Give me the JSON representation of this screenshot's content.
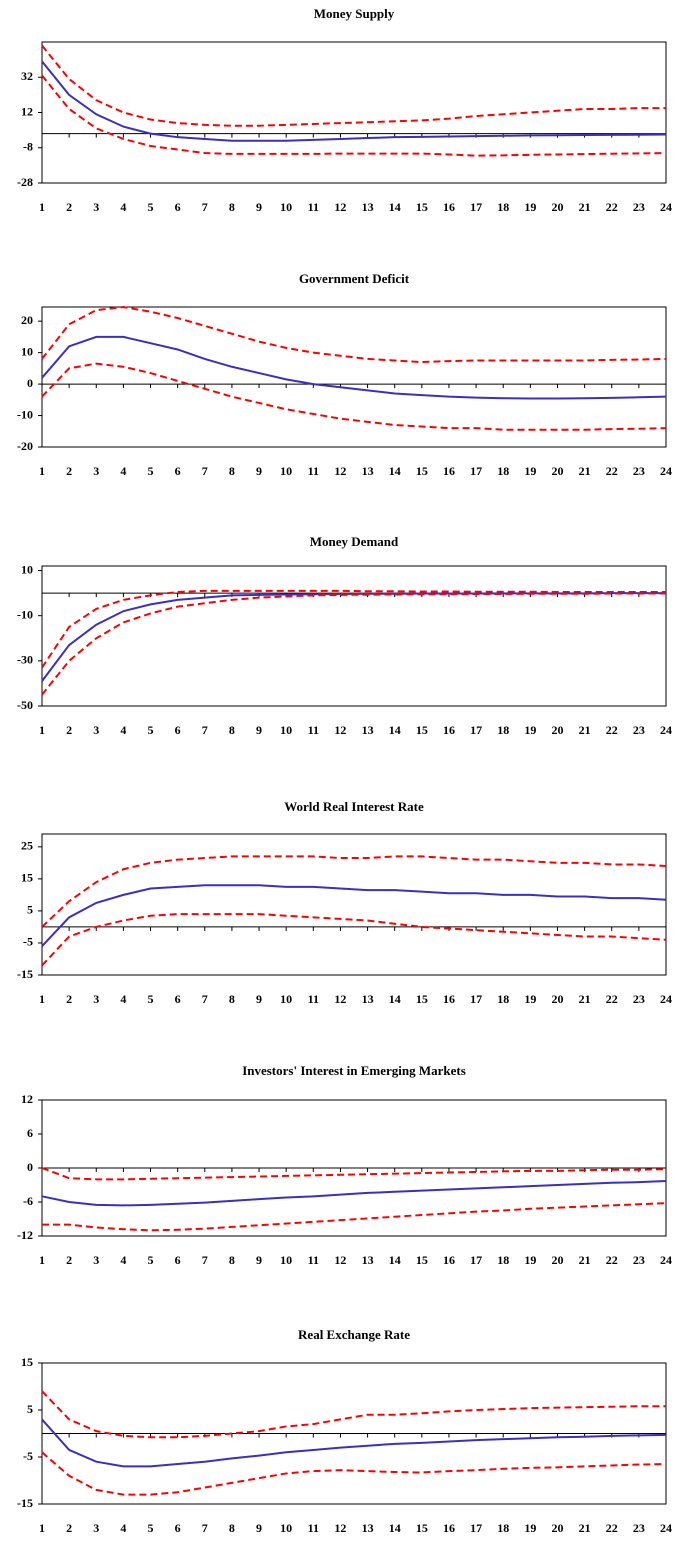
{
  "chart_data": [
    {
      "type": "line",
      "title": "Money Supply",
      "x": [
        1,
        2,
        3,
        4,
        5,
        6,
        7,
        8,
        9,
        10,
        11,
        12,
        13,
        14,
        15,
        16,
        17,
        18,
        19,
        20,
        21,
        22,
        23,
        24
      ],
      "xlim": [
        1,
        24
      ],
      "xticks": [
        1,
        2,
        3,
        4,
        5,
        6,
        7,
        8,
        9,
        10,
        11,
        12,
        13,
        14,
        15,
        16,
        17,
        18,
        19,
        20,
        21,
        22,
        23,
        24
      ],
      "ylim": [
        -28,
        52
      ],
      "yticks": [
        -28,
        -8,
        12,
        32
      ],
      "series": [
        {
          "color": "#ff0000",
          "line_style": "dashed",
          "values": [
            50,
            31,
            19,
            12,
            8,
            6,
            5,
            4.5,
            4.5,
            5,
            5.5,
            6,
            6.5,
            7,
            7.5,
            8.5,
            10,
            11,
            12,
            13,
            14,
            14,
            14.5,
            14.5
          ]
        },
        {
          "color": "#3a2fc4",
          "line_style": "solid",
          "values": [
            41,
            22,
            11,
            4,
            0,
            -2,
            -3,
            -4,
            -4,
            -4,
            -3.5,
            -3,
            -2.5,
            -2,
            -1.8,
            -1.6,
            -1.4,
            -1.2,
            -1,
            -0.9,
            -0.8,
            -0.7,
            -0.6,
            -0.5
          ]
        },
        {
          "color": "#ff0000",
          "line_style": "dashed",
          "values": [
            33,
            14,
            3,
            -3,
            -7,
            -9,
            -11,
            -11.5,
            -11.5,
            -11.5,
            -11.5,
            -11.3,
            -11.3,
            -11.3,
            -11.3,
            -11.8,
            -12.5,
            -12.3,
            -12,
            -11.8,
            -11.6,
            -11.4,
            -11.2,
            -11
          ]
        }
      ]
    },
    {
      "type": "line",
      "title": "Government Deficit",
      "x": [
        1,
        2,
        3,
        4,
        5,
        6,
        7,
        8,
        9,
        10,
        11,
        12,
        13,
        14,
        15,
        16,
        17,
        18,
        19,
        20,
        21,
        22,
        23,
        24
      ],
      "xlim": [
        1,
        24
      ],
      "xticks": [
        1,
        2,
        3,
        4,
        5,
        6,
        7,
        8,
        9,
        10,
        11,
        12,
        13,
        14,
        15,
        16,
        17,
        18,
        19,
        20,
        21,
        22,
        23,
        24
      ],
      "ylim": [
        -20,
        24.5
      ],
      "yticks": [
        -20,
        -10,
        0,
        10,
        20
      ],
      "series": [
        {
          "color": "#ff0000",
          "line_style": "dashed",
          "values": [
            8,
            19,
            23.5,
            24.5,
            23,
            21,
            18.5,
            16,
            13.5,
            11.5,
            10,
            9,
            8,
            7.5,
            7,
            7.3,
            7.5,
            7.5,
            7.5,
            7.5,
            7.5,
            7.7,
            7.8,
            8
          ]
        },
        {
          "color": "#3a2fc4",
          "line_style": "solid",
          "values": [
            2,
            12,
            15,
            15,
            13,
            11,
            8,
            5.5,
            3.5,
            1.5,
            0,
            -1,
            -2,
            -3,
            -3.5,
            -4,
            -4.3,
            -4.5,
            -4.6,
            -4.6,
            -4.5,
            -4.4,
            -4.2,
            -4
          ]
        },
        {
          "color": "#ff0000",
          "line_style": "dashed",
          "values": [
            -4,
            5,
            6.5,
            5.5,
            3.5,
            1,
            -1.5,
            -4,
            -6,
            -8,
            -9.5,
            -11,
            -12,
            -13,
            -13.5,
            -14,
            -14,
            -14.5,
            -14.5,
            -14.5,
            -14.5,
            -14.3,
            -14.2,
            -14
          ]
        }
      ]
    },
    {
      "type": "line",
      "title": "Money Demand",
      "x": [
        1,
        2,
        3,
        4,
        5,
        6,
        7,
        8,
        9,
        10,
        11,
        12,
        13,
        14,
        15,
        16,
        17,
        18,
        19,
        20,
        21,
        22,
        23,
        24
      ],
      "xlim": [
        1,
        24
      ],
      "xticks": [
        1,
        2,
        3,
        4,
        5,
        6,
        7,
        8,
        9,
        10,
        11,
        12,
        13,
        14,
        15,
        16,
        17,
        18,
        19,
        20,
        21,
        22,
        23,
        24
      ],
      "ylim": [
        -50,
        12
      ],
      "yticks": [
        -50,
        -30,
        -10,
        10
      ],
      "series": [
        {
          "color": "#ff0000",
          "line_style": "dashed",
          "values": [
            -33,
            -15,
            -7,
            -3,
            -1,
            0.5,
            1,
            1,
            1,
            1,
            1,
            1,
            0.8,
            0.8,
            0.7,
            0.7,
            0.6,
            0.6,
            0.6,
            0.5,
            0.5,
            0.5,
            0.5,
            0.5
          ]
        },
        {
          "color": "#3a2fc4",
          "line_style": "solid",
          "values": [
            -39,
            -23,
            -14,
            -8,
            -5,
            -3,
            -2,
            -1,
            -0.8,
            -0.6,
            -0.5,
            -0.4,
            -0.3,
            -0.3,
            -0.2,
            -0.2,
            -0.2,
            -0.1,
            -0.1,
            -0.1,
            -0.1,
            0,
            0,
            0
          ]
        },
        {
          "color": "#ff0000",
          "line_style": "dashed",
          "values": [
            -45,
            -30,
            -20,
            -13,
            -9,
            -6,
            -4.5,
            -3,
            -2,
            -1.5,
            -1,
            -0.8,
            -0.7,
            -0.6,
            -0.5,
            -0.5,
            -0.4,
            -0.4,
            -0.3,
            -0.3,
            -0.3,
            -0.2,
            -0.2,
            -0.2
          ]
        }
      ]
    },
    {
      "type": "line",
      "title": "World Real Interest Rate",
      "x": [
        1,
        2,
        3,
        4,
        5,
        6,
        7,
        8,
        9,
        10,
        11,
        12,
        13,
        14,
        15,
        16,
        17,
        18,
        19,
        20,
        21,
        22,
        23,
        24
      ],
      "xlim": [
        1,
        24
      ],
      "xticks": [
        1,
        2,
        3,
        4,
        5,
        6,
        7,
        8,
        9,
        10,
        11,
        12,
        13,
        14,
        15,
        16,
        17,
        18,
        19,
        20,
        21,
        22,
        23,
        24
      ],
      "ylim": [
        -15,
        29
      ],
      "yticks": [
        -15,
        -5,
        5,
        15,
        25
      ],
      "series": [
        {
          "color": "#ff0000",
          "line_style": "dashed",
          "values": [
            0,
            8,
            14,
            18,
            20,
            21,
            21.5,
            22,
            22,
            22,
            22,
            21.5,
            21.5,
            22,
            22,
            21.5,
            21,
            21,
            20.5,
            20,
            20,
            19.5,
            19.5,
            19
          ]
        },
        {
          "color": "#3a2fc4",
          "line_style": "solid",
          "values": [
            -6,
            3,
            7.5,
            10,
            12,
            12.5,
            13,
            13,
            13,
            12.5,
            12.5,
            12,
            11.5,
            11.5,
            11,
            10.5,
            10.5,
            10,
            10,
            9.5,
            9.5,
            9,
            9,
            8.5
          ]
        },
        {
          "color": "#ff0000",
          "line_style": "dashed",
          "values": [
            -12,
            -3,
            0,
            2,
            3.5,
            4,
            4,
            4,
            4,
            3.5,
            3,
            2.5,
            2,
            1,
            0,
            -0.5,
            -1,
            -1.5,
            -2,
            -2.5,
            -3,
            -3,
            -3.5,
            -4
          ]
        }
      ]
    },
    {
      "type": "line",
      "title": "Investors' Interest in Emerging Markets",
      "x": [
        1,
        2,
        3,
        4,
        5,
        6,
        7,
        8,
        9,
        10,
        11,
        12,
        13,
        14,
        15,
        16,
        17,
        18,
        19,
        20,
        21,
        22,
        23,
        24
      ],
      "xlim": [
        1,
        24
      ],
      "xticks": [
        1,
        2,
        3,
        4,
        5,
        6,
        7,
        8,
        9,
        10,
        11,
        12,
        13,
        14,
        15,
        16,
        17,
        18,
        19,
        20,
        21,
        22,
        23,
        24
      ],
      "ylim": [
        -12,
        12
      ],
      "yticks": [
        -12,
        -6,
        0,
        6,
        12
      ],
      "series": [
        {
          "color": "#ff0000",
          "line_style": "dashed",
          "values": [
            0,
            -1.8,
            -2,
            -2,
            -1.9,
            -1.8,
            -1.7,
            -1.6,
            -1.5,
            -1.4,
            -1.3,
            -1.2,
            -1.1,
            -1,
            -0.9,
            -0.8,
            -0.7,
            -0.6,
            -0.5,
            -0.5,
            -0.4,
            -0.3,
            -0.3,
            -0.2
          ]
        },
        {
          "color": "#3a2fc4",
          "line_style": "solid",
          "values": [
            -5,
            -6,
            -6.5,
            -6.6,
            -6.5,
            -6.3,
            -6.1,
            -5.8,
            -5.5,
            -5.2,
            -5,
            -4.7,
            -4.4,
            -4.2,
            -4,
            -3.8,
            -3.6,
            -3.4,
            -3.2,
            -3,
            -2.8,
            -2.6,
            -2.5,
            -2.3
          ]
        },
        {
          "color": "#ff0000",
          "line_style": "dashed",
          "values": [
            -10,
            -10,
            -10.5,
            -10.8,
            -11,
            -10.9,
            -10.7,
            -10.4,
            -10.1,
            -9.8,
            -9.5,
            -9.2,
            -8.9,
            -8.6,
            -8.3,
            -8,
            -7.7,
            -7.5,
            -7.2,
            -7,
            -6.8,
            -6.6,
            -6.4,
            -6.2
          ]
        }
      ]
    },
    {
      "type": "line",
      "title": "Real Exchange Rate",
      "x": [
        1,
        2,
        3,
        4,
        5,
        6,
        7,
        8,
        9,
        10,
        11,
        12,
        13,
        14,
        15,
        16,
        17,
        18,
        19,
        20,
        21,
        22,
        23,
        24
      ],
      "xlim": [
        1,
        24
      ],
      "xticks": [
        1,
        2,
        3,
        4,
        5,
        6,
        7,
        8,
        9,
        10,
        11,
        12,
        13,
        14,
        15,
        16,
        17,
        18,
        19,
        20,
        21,
        22,
        23,
        24
      ],
      "ylim": [
        -15,
        15
      ],
      "yticks": [
        -15,
        -5,
        5,
        15
      ],
      "series": [
        {
          "color": "#ff0000",
          "line_style": "dashed",
          "values": [
            9,
            3,
            0.5,
            -0.5,
            -0.8,
            -0.8,
            -0.5,
            0,
            0.5,
            1.5,
            2,
            3,
            4,
            4,
            4.3,
            4.7,
            5,
            5.2,
            5.4,
            5.5,
            5.6,
            5.7,
            5.8,
            5.8
          ]
        },
        {
          "color": "#3a2fc4",
          "line_style": "solid",
          "values": [
            3,
            -3.5,
            -6,
            -7,
            -7,
            -6.5,
            -6,
            -5.3,
            -4.7,
            -4,
            -3.5,
            -3,
            -2.6,
            -2.2,
            -2,
            -1.7,
            -1.4,
            -1.2,
            -1,
            -0.8,
            -0.7,
            -0.5,
            -0.4,
            -0.3
          ]
        },
        {
          "color": "#ff0000",
          "line_style": "dashed",
          "values": [
            -4,
            -9,
            -12,
            -13,
            -13,
            -12.5,
            -11.5,
            -10.5,
            -9.5,
            -8.5,
            -8,
            -7.8,
            -8,
            -8.2,
            -8.3,
            -8,
            -7.8,
            -7.5,
            -7.3,
            -7.2,
            -7,
            -6.8,
            -6.6,
            -6.5
          ]
        }
      ]
    }
  ]
}
